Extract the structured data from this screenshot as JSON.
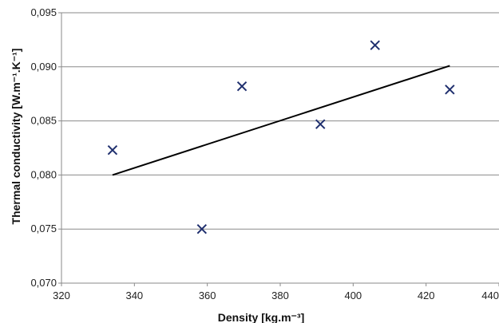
{
  "chart_data": {
    "type": "scatter",
    "title": "",
    "xlabel": "Density [kg.m⁻³]",
    "ylabel": "Thermal conductivity [W.m⁻¹.K⁻¹]",
    "xlim": [
      320,
      440
    ],
    "ylim": [
      0.07,
      0.095
    ],
    "x_ticks": [
      "320",
      "340",
      "360",
      "380",
      "400",
      "420",
      "440"
    ],
    "y_ticks": [
      "0,070",
      "0,075",
      "0,080",
      "0,085",
      "0,090",
      "0,095"
    ],
    "grid": "horizontal",
    "legend": "none",
    "marker": "x",
    "colors": {
      "points": "#1f2f6e",
      "trend": "#000000",
      "grid": "#8a8a8a",
      "axis": "#8a8a8a"
    },
    "series": [
      {
        "points": [
          {
            "x": 334,
            "y": 0.0823
          },
          {
            "x": 358.5,
            "y": 0.075
          },
          {
            "x": 369.5,
            "y": 0.0882
          },
          {
            "x": 391,
            "y": 0.0847
          },
          {
            "x": 406,
            "y": 0.092
          },
          {
            "x": 426.5,
            "y": 0.0879
          }
        ]
      }
    ],
    "trendline": {
      "type": "linear",
      "x": [
        334,
        426.5
      ],
      "y": [
        0.08,
        0.0901
      ]
    }
  }
}
